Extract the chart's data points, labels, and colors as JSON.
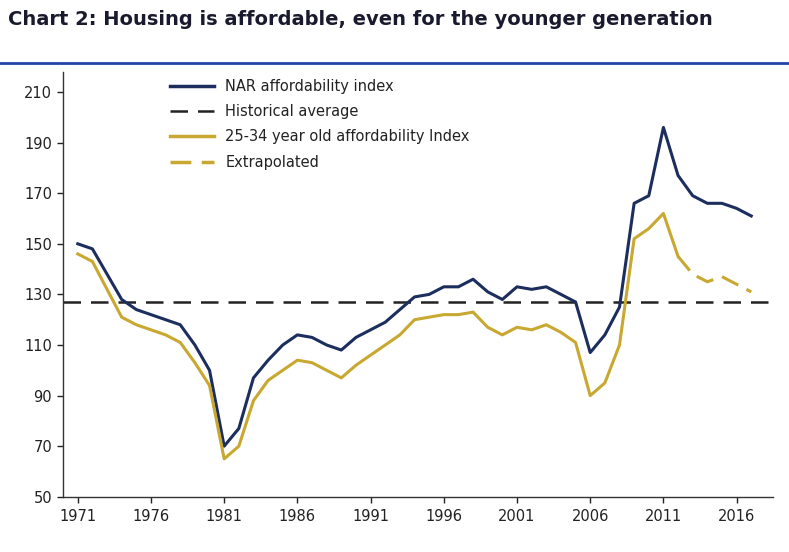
{
  "title": "Chart 2: Housing is affordable, even for the younger generation",
  "title_fontsize": 14,
  "title_fontweight": "bold",
  "title_color": "#1a1a2e",
  "background_color": "#ffffff",
  "ylim": [
    50,
    218
  ],
  "yticks": [
    50,
    70,
    90,
    110,
    130,
    150,
    170,
    190,
    210
  ],
  "xticks": [
    1971,
    1976,
    1981,
    1986,
    1991,
    1996,
    2001,
    2006,
    2011,
    2016
  ],
  "xlim": [
    1970,
    2018.5
  ],
  "historical_avg": 127,
  "nar_color": "#1c2e5e",
  "young_color": "#c8a830",
  "nar_data": {
    "years": [
      1971,
      1972,
      1973,
      1974,
      1975,
      1976,
      1977,
      1978,
      1979,
      1980,
      1981,
      1982,
      1983,
      1984,
      1985,
      1986,
      1987,
      1988,
      1989,
      1990,
      1991,
      1992,
      1993,
      1994,
      1995,
      1996,
      1997,
      1998,
      1999,
      2000,
      2001,
      2002,
      2003,
      2004,
      2005,
      2006,
      2007,
      2008,
      2009,
      2010,
      2011,
      2012,
      2013,
      2014,
      2015,
      2016,
      2017
    ],
    "values": [
      150,
      148,
      138,
      128,
      124,
      122,
      120,
      118,
      110,
      100,
      70,
      77,
      97,
      104,
      110,
      114,
      113,
      110,
      108,
      113,
      116,
      119,
      124,
      129,
      130,
      133,
      133,
      136,
      131,
      128,
      133,
      132,
      133,
      130,
      127,
      107,
      114,
      125,
      166,
      169,
      196,
      177,
      169,
      166,
      166,
      164,
      161
    ]
  },
  "young_data": {
    "years": [
      1971,
      1972,
      1973,
      1974,
      1975,
      1976,
      1977,
      1978,
      1979,
      1980,
      1981,
      1982,
      1983,
      1984,
      1985,
      1986,
      1987,
      1988,
      1989,
      1990,
      1991,
      1992,
      1993,
      1994,
      1995,
      1996,
      1997,
      1998,
      1999,
      2000,
      2001,
      2002,
      2003,
      2004,
      2005,
      2006,
      2007,
      2008,
      2009,
      2010,
      2011,
      2012,
      2013,
      2014,
      2015,
      2016,
      2017
    ],
    "values": [
      146,
      143,
      132,
      121,
      118,
      116,
      114,
      111,
      103,
      94,
      65,
      70,
      88,
      96,
      100,
      104,
      103,
      100,
      97,
      102,
      106,
      110,
      114,
      120,
      121,
      122,
      122,
      123,
      117,
      114,
      117,
      116,
      118,
      115,
      111,
      90,
      95,
      110,
      152,
      156,
      162,
      145,
      138,
      135,
      137,
      134,
      131
    ]
  },
  "extrapolated_start_year": 2012,
  "legend_items": [
    {
      "label": "NAR affordability index",
      "color": "#1c2e5e",
      "linestyle": "solid"
    },
    {
      "label": "Historical average",
      "color": "#222222",
      "linestyle": "dashed"
    },
    {
      "label": "25-34 year old affordability Index",
      "color": "#c8a830",
      "linestyle": "solid"
    },
    {
      "label": "Extrapolated",
      "color": "#c8a830",
      "linestyle": "dashed"
    }
  ]
}
